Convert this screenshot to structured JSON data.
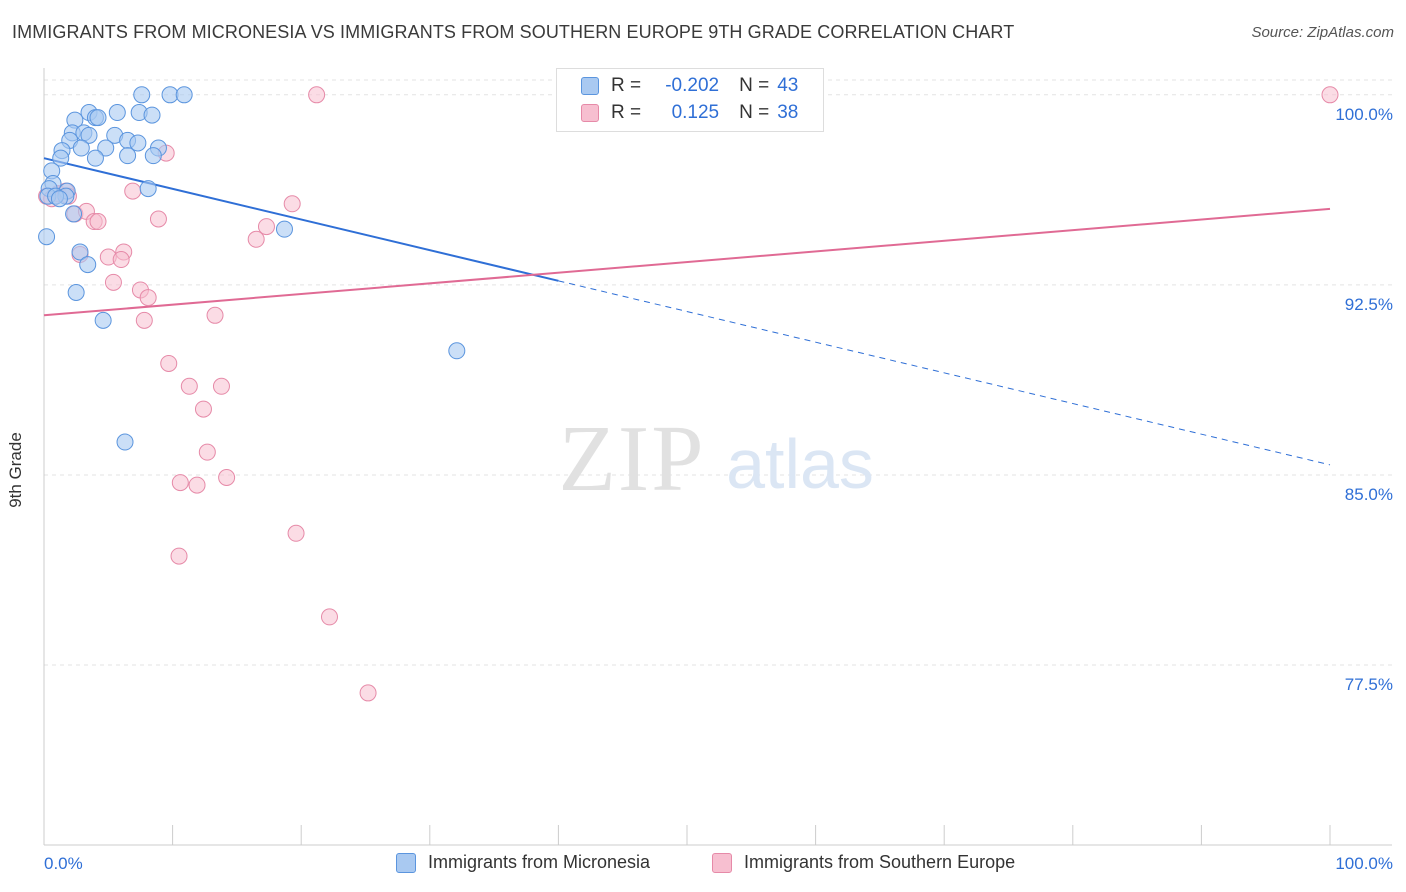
{
  "title": "IMMIGRANTS FROM MICRONESIA VS IMMIGRANTS FROM SOUTHERN EUROPE 9TH GRADE CORRELATION CHART",
  "source": "Source: ZipAtlas.com",
  "watermark": {
    "zip": "ZIP",
    "atlas": "atlas"
  },
  "legend_top": {
    "rows": [
      {
        "r_label": "R =",
        "r_value": "-0.202",
        "n_label": "N =",
        "n_value": "43"
      },
      {
        "r_label": "R =",
        "r_value": "0.125",
        "n_label": "N =",
        "n_value": "38"
      }
    ]
  },
  "legend_bottom": {
    "items": [
      "Immigrants from Micronesia",
      "Immigrants from Southern Europe"
    ]
  },
  "chart_data": {
    "type": "scatter",
    "title": "IMMIGRANTS FROM MICRONESIA VS IMMIGRANTS FROM SOUTHERN EUROPE 9TH GRADE CORRELATION CHART",
    "xlabel": "",
    "ylabel": "9th Grade",
    "xlim": [
      0,
      100
    ],
    "ylim": [
      70.4,
      100.9
    ],
    "x_ticks": [
      "0.0%",
      "100.0%"
    ],
    "y_ticks": [
      {
        "value": 100.0,
        "label": "100.0%"
      },
      {
        "value": 92.5,
        "label": "92.5%"
      },
      {
        "value": 85.0,
        "label": "85.0%"
      },
      {
        "value": 77.5,
        "label": "77.5%"
      }
    ],
    "grid": true,
    "legend_placement": "bottom",
    "colors": {
      "micronesia_fill": "#a9c9f1",
      "micronesia_stroke": "#5b95de",
      "micronesia_line": "#2f6fd6",
      "southern_europe_fill": "#f7bfd0",
      "southern_europe_stroke": "#e68aa8",
      "southern_europe_line": "#e06a94",
      "tick_label": "#2f6fd6"
    },
    "series": [
      {
        "name": "Immigrants from Micronesia",
        "points": [
          [
            7.6,
            100.0
          ],
          [
            9.8,
            100.0
          ],
          [
            10.9,
            100.0
          ],
          [
            3.5,
            99.3
          ],
          [
            5.7,
            99.3
          ],
          [
            7.4,
            99.3
          ],
          [
            8.4,
            99.2
          ],
          [
            4.0,
            99.1
          ],
          [
            4.2,
            99.1
          ],
          [
            2.4,
            99.0
          ],
          [
            2.2,
            98.5
          ],
          [
            3.1,
            98.5
          ],
          [
            3.5,
            98.4
          ],
          [
            5.5,
            98.4
          ],
          [
            2.0,
            98.2
          ],
          [
            6.5,
            98.2
          ],
          [
            7.3,
            98.1
          ],
          [
            2.9,
            97.9
          ],
          [
            4.8,
            97.9
          ],
          [
            8.9,
            97.9
          ],
          [
            1.4,
            97.8
          ],
          [
            6.5,
            97.6
          ],
          [
            8.5,
            97.6
          ],
          [
            1.3,
            97.5
          ],
          [
            4.0,
            97.5
          ],
          [
            0.6,
            97.0
          ],
          [
            0.7,
            96.5
          ],
          [
            0.4,
            96.3
          ],
          [
            1.8,
            96.2
          ],
          [
            8.1,
            96.3
          ],
          [
            1.7,
            96.0
          ],
          [
            0.3,
            96.0
          ],
          [
            0.9,
            96.0
          ],
          [
            2.3,
            95.3
          ],
          [
            18.7,
            94.7
          ],
          [
            0.2,
            94.4
          ],
          [
            2.8,
            93.8
          ],
          [
            3.4,
            93.3
          ],
          [
            2.5,
            92.2
          ],
          [
            4.6,
            91.1
          ],
          [
            32.1,
            89.9
          ],
          [
            6.3,
            86.3
          ],
          [
            1.2,
            95.9
          ]
        ],
        "trend": {
          "x0": 0,
          "y0": 97.5,
          "x1": 100,
          "y1": 85.4,
          "solid_until_x": 40
        }
      },
      {
        "name": "Immigrants from Southern Europe",
        "points": [
          [
            21.2,
            100.0
          ],
          [
            100.0,
            100.0
          ],
          [
            9.5,
            97.7
          ],
          [
            1.1,
            96.1
          ],
          [
            1.7,
            96.2
          ],
          [
            0.2,
            96.0
          ],
          [
            0.6,
            95.9
          ],
          [
            1.9,
            96.0
          ],
          [
            6.9,
            96.2
          ],
          [
            19.3,
            95.7
          ],
          [
            2.4,
            95.3
          ],
          [
            3.3,
            95.4
          ],
          [
            3.9,
            95.0
          ],
          [
            4.2,
            95.0
          ],
          [
            8.9,
            95.1
          ],
          [
            17.3,
            94.8
          ],
          [
            16.5,
            94.3
          ],
          [
            2.8,
            93.7
          ],
          [
            5.0,
            93.6
          ],
          [
            6.2,
            93.8
          ],
          [
            6.0,
            93.5
          ],
          [
            5.4,
            92.6
          ],
          [
            7.5,
            92.3
          ],
          [
            8.1,
            92.0
          ],
          [
            13.3,
            91.3
          ],
          [
            7.8,
            91.1
          ],
          [
            9.7,
            89.4
          ],
          [
            11.3,
            88.5
          ],
          [
            13.8,
            88.5
          ],
          [
            12.4,
            87.6
          ],
          [
            12.7,
            85.9
          ],
          [
            10.6,
            84.7
          ],
          [
            11.9,
            84.6
          ],
          [
            14.2,
            84.9
          ],
          [
            19.6,
            82.7
          ],
          [
            10.5,
            81.8
          ],
          [
            22.2,
            79.4
          ],
          [
            25.2,
            76.4
          ]
        ],
        "trend": {
          "x0": 0,
          "y0": 91.3,
          "x1": 100,
          "y1": 95.5
        }
      }
    ]
  }
}
